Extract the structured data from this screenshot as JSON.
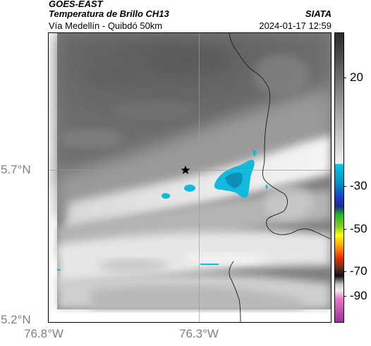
{
  "header": {
    "satellite": "GOES-EAST",
    "product": "Temperatura de Brillo CH13",
    "route": "Vía Medellín - Quibdó 50km",
    "organization": "SIATA",
    "timestamp": "2024-01-17 12:59"
  },
  "axes": {
    "lat_labels": [
      "5.7°N",
      "5.2°N"
    ],
    "lon_labels": [
      "76.8°W",
      "76.3°W"
    ]
  },
  "colorbar": {
    "tick_labels": [
      "20",
      "-30",
      "-50",
      "-70",
      "-90"
    ],
    "colors": {
      "warm_dark": "#2a2a2a",
      "warm_light": "#f2f2f2",
      "cyan": "#00c8e6",
      "blue": "#1e3cc8",
      "green": "#22bb22",
      "yellow": "#ffff00",
      "red": "#e62a00",
      "black": "#101010",
      "pink": "#e678c8",
      "purple": "#9a3296"
    }
  },
  "map": {
    "marker_icon": "star-icon",
    "cloud_color": "#13b9dd"
  }
}
